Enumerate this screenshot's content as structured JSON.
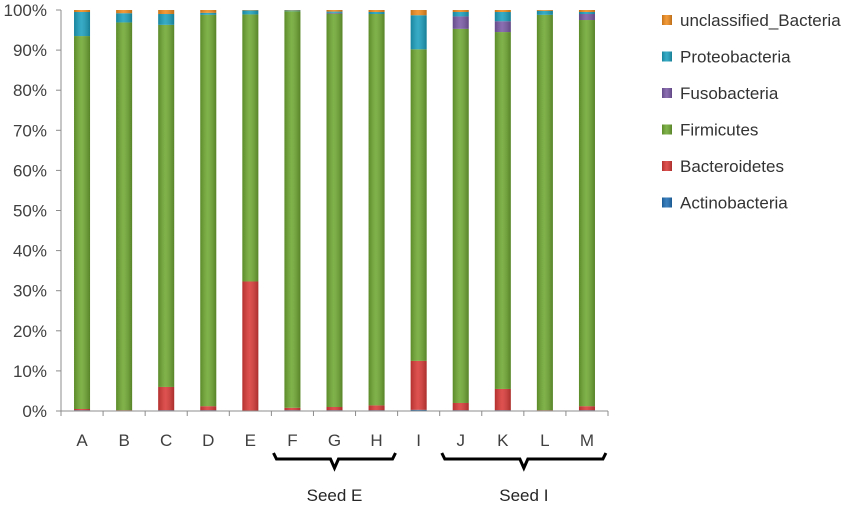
{
  "chart_data": {
    "type": "bar",
    "stacked": true,
    "percent": true,
    "categories": [
      "A",
      "B",
      "C",
      "D",
      "E",
      "F",
      "G",
      "H",
      "I",
      "J",
      "K",
      "L",
      "M"
    ],
    "yticks": [
      "0%",
      "10%",
      "20%",
      "30%",
      "40%",
      "50%",
      "60%",
      "70%",
      "80%",
      "90%",
      "100%"
    ],
    "ylim": [
      0,
      100
    ],
    "legend_position": "right",
    "series": [
      {
        "name": "Actinobacteria",
        "color": "#1f6fb5",
        "values": [
          0.2,
          0.1,
          0.2,
          0.2,
          0.1,
          0.2,
          0.2,
          0.2,
          0.3,
          0.2,
          0.2,
          0.1,
          0.2
        ]
      },
      {
        "name": "Bacteroidetes",
        "color": "#d93a38",
        "values": [
          0.3,
          0.1,
          5.8,
          1.0,
          32.2,
          0.6,
          0.8,
          1.2,
          12.2,
          1.8,
          5.3,
          0.1,
          1.0
        ]
      },
      {
        "name": "Firmicutes",
        "color": "#6fa832",
        "values": [
          93.0,
          96.7,
          90.3,
          97.6,
          66.6,
          98.9,
          98.1,
          97.6,
          77.7,
          93.3,
          89.0,
          98.6,
          96.3
        ]
      },
      {
        "name": "Fusobacteria",
        "color": "#7a5aa6",
        "values": [
          0.0,
          0.0,
          0.0,
          0.0,
          0.0,
          0.0,
          0.2,
          0.0,
          0.0,
          3.1,
          2.7,
          0.0,
          1.5
        ]
      },
      {
        "name": "Proteobacteria",
        "color": "#1ca0be",
        "values": [
          6.0,
          2.3,
          2.7,
          0.5,
          1.0,
          0.2,
          0.3,
          0.5,
          8.5,
          1.1,
          2.3,
          1.0,
          0.5
        ]
      },
      {
        "name": "unclassified_Bacteria",
        "color": "#f08c1e",
        "values": [
          0.5,
          0.8,
          1.0,
          0.7,
          0.1,
          0.1,
          0.4,
          0.5,
          1.3,
          0.5,
          0.5,
          0.2,
          0.5
        ]
      }
    ],
    "legend": [
      "unclassified_Bacteria",
      "Proteobacteria",
      "Fusobacteria",
      "Firmicutes",
      "Bacteroidetes",
      "Actinobacteria"
    ],
    "groups": [
      {
        "label": "Seed E",
        "from": "F",
        "to": "H"
      },
      {
        "label": "Seed I",
        "from": "J",
        "to": "M"
      }
    ]
  }
}
